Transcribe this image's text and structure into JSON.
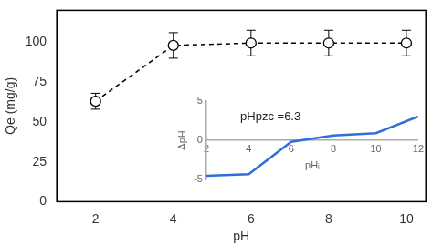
{
  "chart_data": [
    {
      "type": "line",
      "x_label": "pH",
      "y_label": "Qe (mg/g)",
      "x": [
        2,
        4,
        6,
        8,
        10
      ],
      "values": [
        63,
        98,
        99.5,
        99.5,
        99.5
      ],
      "errors": [
        5,
        8,
        8,
        8,
        8
      ],
      "color": "#000000",
      "marker": "circle",
      "line_style": "dashed",
      "xlim": [
        1,
        10.5
      ],
      "xticks": [
        2,
        4,
        6,
        8,
        10
      ],
      "ylim": [
        0,
        120
      ],
      "yticks": [
        0,
        25,
        50,
        75,
        100
      ],
      "grid": false
    },
    {
      "type": "line",
      "x_label": "pHᵢ",
      "y_label": "ΔpH",
      "annotation": "pHpzc =6.3",
      "x": [
        2,
        4,
        6,
        8,
        10,
        12
      ],
      "values": [
        -4.5,
        -4.3,
        -0.2,
        0.6,
        0.9,
        3.0
      ],
      "color": "#2e6fd8",
      "line_style": "solid",
      "xlim": [
        2,
        12
      ],
      "xticks": [
        2,
        4,
        6,
        8,
        10,
        12
      ],
      "ylim": [
        -5,
        5
      ],
      "yticks": [
        -5,
        0,
        5
      ],
      "grid": false
    }
  ]
}
